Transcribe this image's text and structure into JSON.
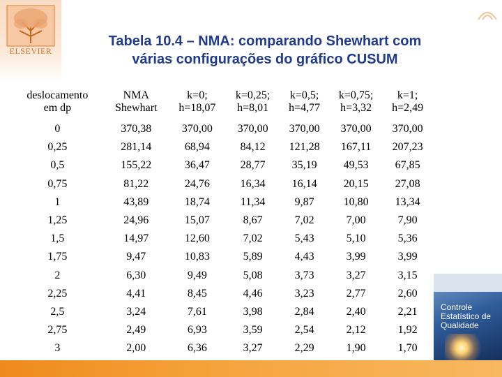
{
  "header": {
    "logo_text": "ELSEVIER",
    "title_line1": "Tabela 10.4 – NMA: comparando Shewhart com",
    "title_line2": "várias configurações do gráfico CUSUM"
  },
  "table": {
    "headers": [
      [
        "deslocamento",
        "em dp"
      ],
      [
        "NMA",
        "Shewhart"
      ],
      [
        "k=0;",
        "h=18,07"
      ],
      [
        "k=0,25;",
        "h=8,01"
      ],
      [
        "k=0,5;",
        "h=4,77"
      ],
      [
        "k=0,75;",
        "h=3,32"
      ],
      [
        "k=1;",
        "h=2,49"
      ]
    ],
    "rows": [
      [
        "0",
        "370,38",
        "370,00",
        "370,00",
        "370,00",
        "370,00",
        "370,00"
      ],
      [
        "0,25",
        "281,14",
        "68,94",
        "84,12",
        "121,28",
        "167,11",
        "207,23"
      ],
      [
        "0,5",
        "155,22",
        "36,47",
        "28,77",
        "35,19",
        "49,53",
        "67,85"
      ],
      [
        "0,75",
        "81,22",
        "24,76",
        "16,34",
        "16,14",
        "20,15",
        "27,08"
      ],
      [
        "1",
        "43,89",
        "18,74",
        "11,34",
        "9,87",
        "10,80",
        "13,34"
      ],
      [
        "1,25",
        "24,96",
        "15,07",
        "8,67",
        "7,02",
        "7,00",
        "7,90"
      ],
      [
        "1,5",
        "14,97",
        "12,60",
        "7,02",
        "5,43",
        "5,10",
        "5,36"
      ],
      [
        "1,75",
        "9,47",
        "10,83",
        "5,89",
        "4,43",
        "3,99",
        "3,99"
      ],
      [
        "2",
        "6,30",
        "9,49",
        "5,08",
        "3,73",
        "3,27",
        "3,15"
      ],
      [
        "2,25",
        "4,41",
        "8,45",
        "4,46",
        "3,23",
        "2,77",
        "2,60"
      ],
      [
        "2,5",
        "3,24",
        "7,61",
        "3,98",
        "2,84",
        "2,40",
        "2,21"
      ],
      [
        "2,75",
        "2,49",
        "6,93",
        "3,59",
        "2,54",
        "2,12",
        "1,92"
      ],
      [
        "3",
        "2,00",
        "6,36",
        "3,27",
        "2,29",
        "1,90",
        "1,70"
      ]
    ]
  },
  "book": {
    "title_line1": "Controle",
    "title_line2": "Estatístico de",
    "title_line3": "Qualidade"
  },
  "colors": {
    "title": "#1f3b8a",
    "accent_orange": "#ee8a1c"
  }
}
